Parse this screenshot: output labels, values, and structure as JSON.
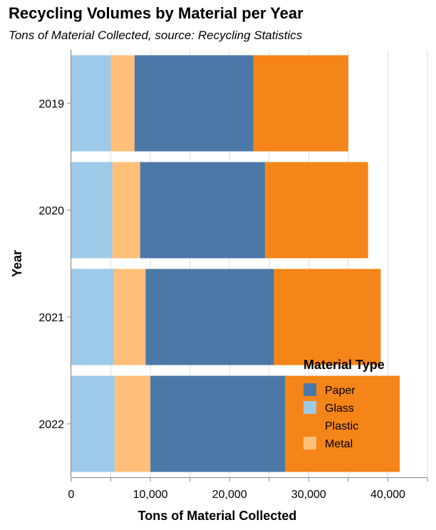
{
  "chart_data": {
    "type": "bar",
    "orientation": "horizontal",
    "stacked": true,
    "title": "Recycling Volumes by Material per Year",
    "subtitle": "Tons of Material Collected, source: Recycling Statistics",
    "xlabel": "Tons of Material Collected",
    "ylabel": "Year",
    "xlim": [
      0,
      45000
    ],
    "xticks": [
      0,
      10000,
      20000,
      30000,
      40000
    ],
    "xtick_labels": [
      "0",
      "10,000",
      "20,000",
      "30,000",
      "40,000"
    ],
    "grid": true,
    "categories": [
      "2019",
      "2020",
      "2021",
      "2022"
    ],
    "series": [
      {
        "name": "Glass",
        "color": "#9ecae9",
        "values": [
          5000,
          5200,
          5400,
          5500
        ]
      },
      {
        "name": "Metal",
        "color": "#ffbf79",
        "values": [
          3000,
          3500,
          4000,
          4500
        ]
      },
      {
        "name": "Paper",
        "color": "#4c78a8",
        "values": [
          15000,
          15800,
          16200,
          17000
        ]
      },
      {
        "name": "Plastic",
        "color": "#f58518",
        "values": [
          12000,
          13000,
          13500,
          14500
        ]
      }
    ],
    "legend": {
      "title": "Material Type",
      "placement": "bottom-right",
      "entries": [
        {
          "label": "Paper",
          "color": "#4c78a8"
        },
        {
          "label": "Glass",
          "color": "#9ecae9"
        },
        {
          "label": "Plastic",
          "color": "#f58518"
        },
        {
          "label": "Metal",
          "color": "#ffbf79"
        }
      ]
    }
  }
}
